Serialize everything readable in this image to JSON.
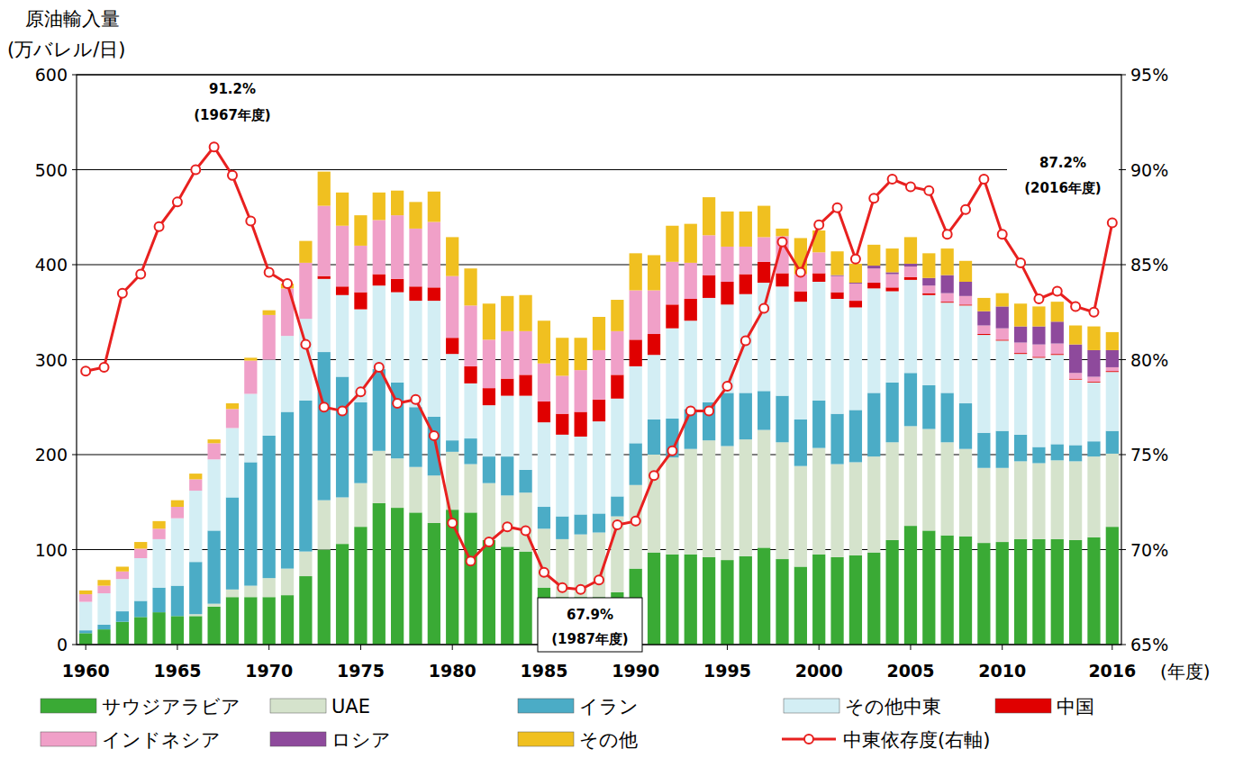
{
  "chart_data": {
    "type": "bar",
    "stacked": true,
    "y_title": "原油輸入量",
    "y_unit": "(万バレル/日)",
    "x_label": "(年度)",
    "categories": [
      "1960",
      null,
      null,
      null,
      null,
      "1965",
      null,
      null,
      null,
      null,
      "1970",
      null,
      null,
      null,
      null,
      "1975",
      null,
      null,
      null,
      null,
      "1980",
      null,
      null,
      null,
      null,
      "1985",
      null,
      null,
      null,
      null,
      "1990",
      null,
      null,
      null,
      null,
      "1995",
      null,
      null,
      null,
      null,
      "2000",
      null,
      null,
      null,
      null,
      "2005",
      null,
      null,
      null,
      null,
      "2010",
      null,
      null,
      null,
      null,
      null,
      "2016"
    ],
    "series": [
      {
        "name": "サウジアラビア",
        "color": "#3aaa35",
        "values": [
          12,
          16,
          24,
          29,
          34,
          30,
          30,
          40,
          50,
          50,
          50,
          52,
          72,
          100,
          106,
          124,
          149,
          144,
          139,
          128,
          142,
          139,
          110,
          103,
          98,
          60,
          50,
          50,
          50,
          55,
          80,
          97,
          95,
          95,
          92,
          89,
          93,
          102,
          90,
          82,
          95,
          92,
          94,
          97,
          110,
          125,
          120,
          115,
          114,
          107,
          108,
          111,
          111,
          111,
          110,
          113,
          124
        ]
      },
      {
        "name": "UAE",
        "color": "#d5e3cc",
        "values": [
          0,
          0,
          0,
          0,
          0,
          0,
          2,
          3,
          8,
          12,
          20,
          28,
          26,
          52,
          49,
          46,
          55,
          52,
          48,
          50,
          61,
          51,
          60,
          54,
          62,
          62,
          61,
          66,
          68,
          80,
          88,
          103,
          102,
          111,
          123,
          120,
          123,
          124,
          123,
          106,
          112,
          98,
          98,
          101,
          103,
          105,
          107,
          98,
          92,
          79,
          78,
          82,
          80,
          83,
          83,
          85,
          77
        ]
      },
      {
        "name": "イラン",
        "color": "#4bacc6",
        "values": [
          3,
          5,
          11,
          17,
          26,
          32,
          55,
          77,
          97,
          130,
          150,
          165,
          159,
          156,
          127,
          85,
          86,
          80,
          63,
          62,
          12,
          27,
          28,
          41,
          24,
          23,
          24,
          21,
          20,
          21,
          44,
          37,
          41,
          42,
          40,
          56,
          49,
          41,
          49,
          49,
          50,
          53,
          55,
          67,
          63,
          56,
          46,
          52,
          48,
          37,
          39,
          28,
          17,
          17,
          17,
          16,
          24
        ]
      },
      {
        "name": "その他中東",
        "color": "#d3eef4",
        "values": [
          30,
          33,
          34,
          45,
          51,
          71,
          75,
          75,
          73,
          72,
          80,
          80,
          86,
          77,
          86,
          98,
          88,
          95,
          112,
          122,
          91,
          58,
          54,
          64,
          78,
          89,
          86,
          82,
          97,
          103,
          81,
          68,
          95,
          93,
          110,
          93,
          104,
          114,
          115,
          124,
          125,
          121,
          108,
          110,
          96,
          98,
          95,
          95,
          103,
          103,
          95,
          85,
          94,
          94,
          69,
          62,
          62
        ]
      },
      {
        "name": "中国",
        "color": "#e00000",
        "values": [
          0,
          0,
          0,
          0,
          0,
          0,
          0,
          0,
          0,
          0,
          0,
          0,
          0,
          3,
          9,
          18,
          12,
          14,
          15,
          14,
          17,
          18,
          18,
          18,
          22,
          22,
          22,
          26,
          23,
          25,
          28,
          22,
          25,
          23,
          24,
          24,
          21,
          22,
          14,
          11,
          9,
          7,
          7,
          6,
          4,
          3,
          2,
          1,
          1,
          1,
          1,
          1,
          1,
          1,
          1,
          1,
          1
        ]
      },
      {
        "name": "インドネシア",
        "color": "#f0a0c8",
        "values": [
          8,
          8,
          8,
          10,
          11,
          12,
          12,
          17,
          20,
          35,
          47,
          50,
          59,
          74,
          64,
          49,
          57,
          67,
          61,
          69,
          65,
          64,
          51,
          50,
          46,
          40,
          40,
          44,
          52,
          46,
          52,
          46,
          45,
          38,
          42,
          37,
          29,
          26,
          39,
          18,
          22,
          17,
          18,
          15,
          14,
          11,
          8,
          9,
          9,
          9,
          12,
          11,
          13,
          11,
          6,
          5,
          4
        ]
      },
      {
        "name": "ロシア",
        "color": "#8e4a9c",
        "values": [
          0,
          0,
          0,
          0,
          0,
          0,
          0,
          0,
          0,
          0,
          0,
          0,
          0,
          0,
          0,
          0,
          0,
          0,
          0,
          0,
          0,
          0,
          0,
          0,
          0,
          0,
          0,
          0,
          0,
          0,
          0,
          0,
          0,
          0,
          0,
          0,
          0,
          0,
          0,
          0,
          0,
          1,
          1,
          3,
          2,
          3,
          8,
          19,
          15,
          15,
          23,
          17,
          19,
          23,
          30,
          28,
          18
        ]
      },
      {
        "name": "その他",
        "color": "#f0c020",
        "values": [
          4,
          6,
          5,
          7,
          8,
          7,
          6,
          4,
          6,
          3,
          5,
          5,
          23,
          36,
          35,
          32,
          29,
          26,
          28,
          32,
          41,
          39,
          38,
          37,
          38,
          45,
          40,
          34,
          35,
          33,
          39,
          37,
          38,
          41,
          40,
          37,
          37,
          33,
          8,
          38,
          23,
          25,
          20,
          22,
          25,
          28,
          26,
          28,
          22,
          14,
          14,
          24,
          21,
          21,
          20,
          25,
          19
        ]
      },
      {
        "name": "中東依存度(右軸)",
        "type": "line",
        "axis": "y2",
        "color": "#e8201f",
        "marker": "circle",
        "values": [
          79.4,
          79.6,
          83.5,
          84.5,
          87.0,
          88.3,
          90.0,
          91.2,
          89.7,
          87.3,
          84.6,
          84.0,
          80.8,
          77.5,
          77.3,
          78.3,
          79.6,
          77.7,
          77.9,
          76.0,
          71.4,
          69.4,
          70.4,
          71.2,
          71.0,
          68.8,
          68.0,
          67.9,
          68.4,
          71.3,
          71.5,
          73.9,
          75.2,
          77.3,
          77.3,
          78.6,
          81.0,
          82.7,
          86.2,
          84.6,
          87.1,
          88.0,
          85.3,
          88.5,
          89.5,
          89.1,
          88.9,
          86.6,
          87.9,
          89.5,
          86.6,
          85.1,
          83.2,
          83.6,
          82.8,
          82.5,
          87.2
        ]
      }
    ],
    "ylim": [
      0,
      600
    ],
    "yticks": [
      0,
      100,
      200,
      300,
      400,
      500,
      600
    ],
    "y2lim": [
      65,
      95
    ],
    "y2ticks": [
      {
        "value": 65,
        "label": "65%"
      },
      {
        "value": 70,
        "label": "70%"
      },
      {
        "value": 75,
        "label": "75%"
      },
      {
        "value": 80,
        "label": "80%"
      },
      {
        "value": 85,
        "label": "85%"
      },
      {
        "value": 90,
        "label": "90%"
      },
      {
        "value": 95,
        "label": "95%"
      }
    ],
    "grid": true,
    "legend": "bottom",
    "annotations": [
      {
        "lines": [
          "91.2%",
          "(1967年度)"
        ]
      },
      {
        "lines": [
          "67.9%",
          "(1987年度)"
        ]
      },
      {
        "lines": [
          "87.2%",
          "(2016年度)"
        ]
      }
    ]
  }
}
